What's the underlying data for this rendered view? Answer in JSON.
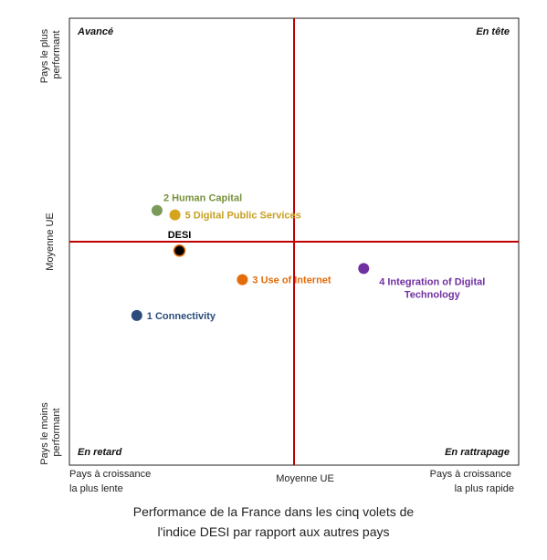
{
  "chart_data": {
    "type": "scatter",
    "title": "",
    "xlim": [
      -1,
      1
    ],
    "ylim": [
      -1,
      1
    ],
    "grid": false,
    "quadrants": {
      "top_left": "Avancé",
      "top_right": "En tête",
      "bottom_left": "En retard",
      "bottom_right": "En rattrapage"
    },
    "x_axis": {
      "left": [
        "Pays à croissance",
        "la plus lente"
      ],
      "center": "Moyenne UE",
      "right": [
        "Pays à croissance",
        "la plus rapide"
      ]
    },
    "y_axis": {
      "top": [
        "Pays le plus",
        "performant"
      ],
      "center": "Moyenne UE",
      "bottom": [
        "Pays le moins",
        "performant"
      ]
    },
    "points": [
      {
        "label": [
          "1 Connectivity"
        ],
        "x": -0.7,
        "y": -0.33,
        "color": "#2a4b7c",
        "label_color": "#2a4b7c",
        "label_pos": "right"
      },
      {
        "label": [
          "2 Human Capital"
        ],
        "x": -0.61,
        "y": 0.14,
        "color": "#7a9a5a",
        "label_color": "#76923c",
        "label_pos": "right-up"
      },
      {
        "label": [
          "3 Use of Internet"
        ],
        "x": -0.23,
        "y": -0.17,
        "color": "#e36c0a",
        "label_color": "#e36c0a",
        "label_pos": "right"
      },
      {
        "label": [
          "4 Integration of Digital",
          "Technology"
        ],
        "x": 0.31,
        "y": -0.12,
        "color": "#7030a0",
        "label_color": "#7030a0",
        "label_pos": "below-right"
      },
      {
        "label": [
          "5 Digital Public Services"
        ],
        "x": -0.53,
        "y": 0.12,
        "color": "#d4a51c",
        "label_color": "#c9a021",
        "label_pos": "right"
      },
      {
        "label": [
          "DESI"
        ],
        "x": -0.51,
        "y": -0.04,
        "color": "#000000",
        "label_color": "#000000",
        "label_pos": "above"
      }
    ]
  },
  "caption": [
    "Performance de la France dans les cinq volets de",
    "l'indice DESI par rapport aux autres pays"
  ]
}
